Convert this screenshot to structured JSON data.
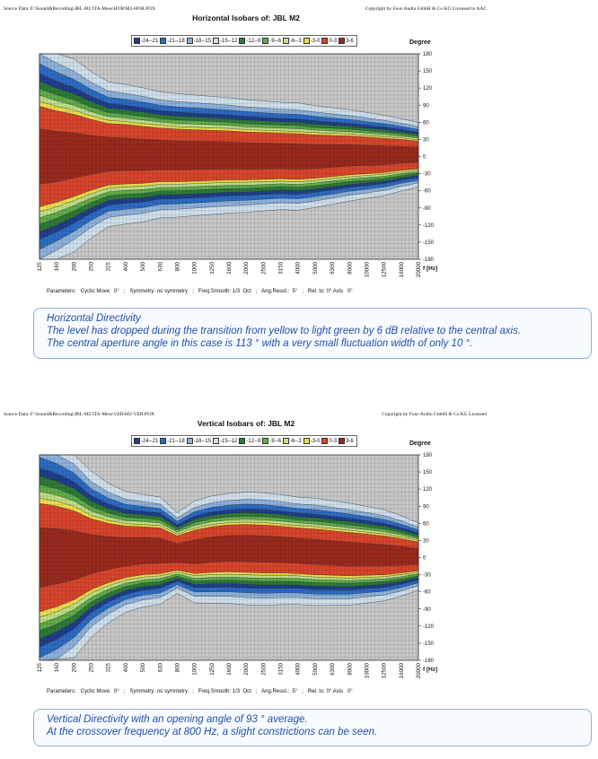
{
  "figures": [
    {
      "source": "Source Data:  F:\\Sound&Recording\\JBL-M2 ITA-Mess\\HOR\\M2-HOR.POX",
      "copyright": "Copyright by Four-Audio GmbH & Co KG   Licensed to AAC",
      "title": "Horizontal Isobars of:   JBL  M2",
      "degree_label": "Degree",
      "freq_label": "f [Hz]",
      "params": "Parameters:   Cyclic Move:  0°   ;   Symmetry: no symmetry   ;   Freq.Smooth: 1/3  Oct   ;   Ang.Resol.:  5°   ;   Rel. to: 0° Axis   0°",
      "caption": [
        "Horizontal Directivity",
        "The level has dropped during the transition from yellow to light green by 6 dB relative to the central axis.",
        "The central aperture angle in this case is 113 ° with a very small fluctuation width of only 10 °."
      ]
    },
    {
      "source": "Source Data:  F:\\Sound&Recording\\JBL-M2 ITA-Mess\\VER\\M2-VER.POX",
      "copyright": "Copyright by Four-Audio GmbH & Co KG   Licensed",
      "title": "Vertical Isobars of:   JBL  M2",
      "degree_label": "Degree",
      "freq_label": "f [Hz]",
      "params": "Parameters:   Cyclic Move:  0°   ;   Symmetry: no symmetry   ;   Freq.Smooth: 1/3  Oct   ;   Ang.Resol.:  5°   ;   Rel. to: 0° Axis   0°",
      "caption": [
        "Vertical Directivity with an opening angle of 93 ° average.",
        "At the crossover frequency at 800 Hz, a slight constrictions can be seen."
      ]
    }
  ],
  "chart_data": [
    {
      "type": "heatmap",
      "title": "Horizontal Isobars of:   JBL  M2",
      "x_ticks": [
        "125",
        "160",
        "200",
        "250",
        "315",
        "400",
        "500",
        "630",
        "800",
        "1000",
        "1250",
        "1600",
        "2000",
        "2500",
        "3150",
        "4000",
        "5000",
        "6300",
        "8000",
        "10000",
        "12500",
        "16000",
        "20000"
      ],
      "y_ticks": [
        180,
        150,
        120,
        90,
        60,
        30,
        0,
        -30,
        -60,
        -90,
        -120,
        -150,
        -180
      ],
      "legend": [
        "-24--21",
        "-21--18",
        "-18--15",
        "-15--12",
        "-12--9",
        "-9--6",
        "-6--3",
        "-3-0",
        "0-3",
        "3-6"
      ],
      "colors": [
        "#1f3f8c",
        "#2c6cc4",
        "#8eb2dc",
        "#cfe0ec",
        "#2e7a3a",
        "#5fae4a",
        "#bfe08a",
        "#ece04a",
        "#d8452c",
        "#9a2a1e"
      ],
      "half_width_deg": [
        88,
        80,
        72,
        62,
        54,
        52,
        50,
        47,
        46,
        45,
        44,
        43,
        42,
        41,
        40,
        40,
        38,
        36,
        34,
        32,
        30,
        27,
        24
      ],
      "asymmetry_deg": [
        0,
        0,
        2,
        3,
        4,
        4,
        3,
        3,
        2,
        2,
        2,
        2,
        1,
        1,
        1,
        0,
        0,
        1,
        2,
        2,
        2,
        3,
        3
      ]
    },
    {
      "type": "heatmap",
      "title": "Vertical Isobars of:   JBL  M2",
      "x_ticks": [
        "125",
        "160",
        "200",
        "250",
        "315",
        "400",
        "500",
        "630",
        "800",
        "1000",
        "1250",
        "1600",
        "2000",
        "2500",
        "3150",
        "4000",
        "5000",
        "6300",
        "8000",
        "10000",
        "12500",
        "16000",
        "20000"
      ],
      "y_ticks": [
        180,
        150,
        120,
        90,
        60,
        30,
        0,
        -30,
        -60,
        -90,
        -120,
        -150,
        -180
      ],
      "legend": [
        "-24--21",
        "-21--18",
        "-18--15",
        "-15--12",
        "-12--9",
        "-9--6",
        "-6--3",
        "-3-0",
        "0-3",
        "3-6"
      ],
      "colors": [
        "#1f3f8c",
        "#2c6cc4",
        "#8eb2dc",
        "#cfe0ec",
        "#2e7a3a",
        "#5fae4a",
        "#bfe08a",
        "#ece04a",
        "#d8452c",
        "#9a2a1e"
      ],
      "half_width_deg": [
        95,
        88,
        78,
        62,
        52,
        45,
        42,
        40,
        30,
        38,
        40,
        41,
        42,
        42,
        41,
        40,
        40,
        39,
        38,
        36,
        34,
        30,
        25
      ],
      "asymmetry_deg": [
        0,
        2,
        4,
        6,
        8,
        10,
        12,
        12,
        8,
        10,
        14,
        16,
        16,
        15,
        14,
        12,
        10,
        8,
        6,
        5,
        4,
        3,
        2
      ]
    }
  ]
}
